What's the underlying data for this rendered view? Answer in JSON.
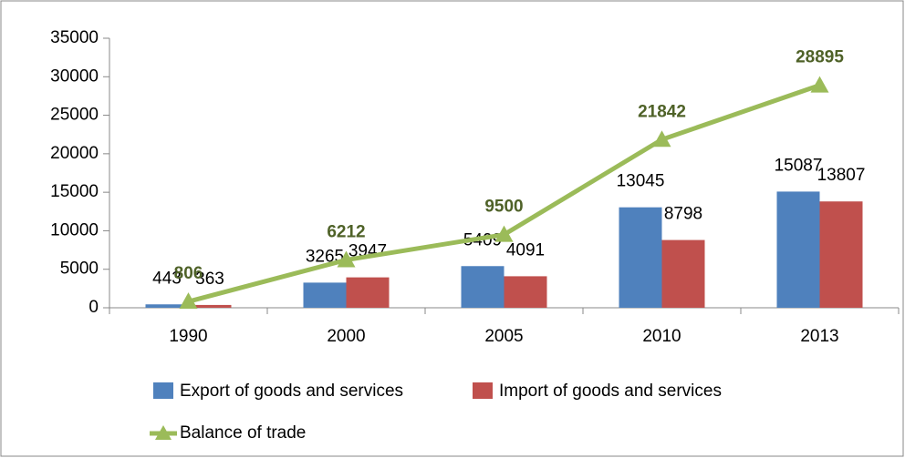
{
  "chart_data": {
    "type": "bar",
    "categories": [
      "1990",
      "2000",
      "2005",
      "2010",
      "2013"
    ],
    "series": [
      {
        "name": "Export of goods and services",
        "color": "#4f81bd",
        "values": [
          443,
          3265,
          5409,
          13045,
          15087
        ]
      },
      {
        "name": "Import of goods and services",
        "color": "#c0504d",
        "values": [
          363,
          3947,
          4091,
          8798,
          13807
        ]
      },
      {
        "name": "Balance of trade",
        "type": "line",
        "color": "#9bbb59",
        "label_color": "#4f6228",
        "values": [
          806,
          6212,
          9500,
          21842,
          28895
        ]
      }
    ],
    "ylim": [
      0,
      35000
    ],
    "yticks": [
      0,
      5000,
      10000,
      15000,
      20000,
      25000,
      30000,
      35000
    ],
    "grid": false,
    "legend": "bottom"
  }
}
